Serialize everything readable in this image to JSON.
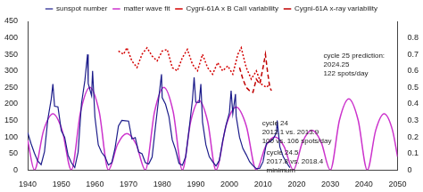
{
  "chart_data": {
    "type": "line",
    "xlim": [
      1940,
      2050
    ],
    "xticks": [
      1940,
      1950,
      1960,
      1970,
      1980,
      1990,
      2000,
      2010,
      2020,
      2030,
      2040,
      2050
    ],
    "ylim": [
      0,
      450
    ],
    "yticks": [
      0,
      50,
      100,
      150,
      200,
      250,
      300,
      350,
      400,
      450
    ],
    "y2lim": [
      0,
      0.9
    ],
    "y2ticks": [
      0,
      0.1,
      0.2,
      0.3,
      0.4,
      0.5,
      0.6,
      0.7,
      0.8
    ],
    "grid": false,
    "legend": "top",
    "series": [
      {
        "name": "sunspot number",
        "color": "#1c1c8a",
        "line_style": "solid",
        "x": [
          1940,
          1941,
          1942,
          1943,
          1944,
          1945,
          1946,
          1947,
          1947.5,
          1948,
          1949,
          1950,
          1951,
          1952,
          1953,
          1954,
          1955,
          1956,
          1957,
          1957.8,
          1958,
          1959,
          1959.3,
          1960,
          1961,
          1962,
          1963,
          1964,
          1965,
          1966,
          1967,
          1968,
          1969,
          1970,
          1971,
          1972,
          1973,
          1974,
          1975,
          1976,
          1977,
          1978,
          1979,
          1979.8,
          1980,
          1981,
          1982,
          1983,
          1984,
          1985,
          1986,
          1987,
          1988,
          1989,
          1989.5,
          1990,
          1991,
          1991.5,
          1992,
          1993,
          1994,
          1995,
          1996,
          1997,
          1998,
          1999,
          2000,
          2000.5,
          2001,
          2001.8,
          2002,
          2003,
          2004,
          2005,
          2006,
          2007,
          2008,
          2009,
          2010,
          2011,
          2012,
          2013,
          2014,
          2014.2,
          2015,
          2016,
          2017,
          2018
        ],
        "values": [
          113,
          80,
          51,
          27,
          16,
          55,
          154,
          214,
          260,
          193,
          191,
          119,
          99,
          45,
          22,
          7,
          54,
          201,
          270,
          350,
          262,
          225,
          300,
          160,
          76,
          53,
          40,
          15,
          22,
          67,
          133,
          150,
          149,
          148,
          94,
          98,
          54,
          49,
          22,
          18,
          39,
          131,
          220,
          290,
          219,
          199,
          162,
          91,
          61,
          20,
          14,
          40,
          123,
          212,
          280,
          205,
          204,
          260,
          145,
          76,
          40,
          25,
          12,
          29,
          88,
          136,
          174,
          240,
          170,
          230,
          163,
          99,
          65,
          46,
          25,
          13,
          4,
          5,
          25,
          81,
          85,
          94,
          113,
          150,
          70,
          40,
          22,
          7
        ]
      },
      {
        "name": "matter wave fit",
        "color": "#cc33cc",
        "line_style": "solid",
        "x": [
          1940,
          1942,
          1944.75,
          1947.5,
          1950.25,
          1953,
          1955.75,
          1958.5,
          1961.25,
          1964,
          1966.75,
          1969.5,
          1972.25,
          1975,
          1977.75,
          1980.5,
          1983.25,
          1986,
          1988.5,
          1991,
          1993.5,
          1996,
          1999,
          2002,
          2005,
          2008,
          2010.75,
          2013.5,
          2016.25,
          2019,
          2021.75,
          2024.5,
          2027.25,
          2030,
          2032.75,
          2035.5,
          2038.25,
          2041,
          2043.5,
          2046,
          2048.5,
          2050
        ],
        "values": [
          90,
          0,
          120,
          170,
          120,
          0,
          177,
          250,
          177,
          0,
          78,
          110,
          78,
          0,
          177,
          250,
          177,
          0,
          148,
          210,
          148,
          0,
          134,
          190,
          134,
          0,
          71,
          100,
          71,
          0,
          85,
          120,
          85,
          0,
          152,
          215,
          152,
          0,
          120,
          170,
          120,
          40
        ]
      },
      {
        "name": "Cygni-61A x B CaII variability",
        "color": "#d40000",
        "line_style": "dotted",
        "axis": "y2",
        "x": [
          1967,
          1968.5,
          1969.5,
          1971,
          1972.5,
          1974,
          1975.5,
          1977,
          1978.5,
          1980,
          1981.5,
          1983,
          1984.5,
          1986,
          1987.5,
          1989,
          1990.5,
          1992,
          1993.5,
          1995,
          1996.5,
          1998,
          1999.5,
          2001,
          2002.5,
          2003.5,
          2005,
          2006.5,
          2008,
          2009.5,
          2011,
          2012
        ],
        "values": [
          0.72,
          0.7,
          0.74,
          0.66,
          0.62,
          0.7,
          0.74,
          0.69,
          0.66,
          0.72,
          0.73,
          0.62,
          0.6,
          0.68,
          0.73,
          0.64,
          0.6,
          0.7,
          0.62,
          0.58,
          0.65,
          0.6,
          0.63,
          0.58,
          0.7,
          0.74,
          0.62,
          0.55,
          0.6,
          0.52,
          0.5,
          0.52
        ]
      },
      {
        "name": "Cygni-61A x-ray variability",
        "color": "#c00000",
        "line_style": "dashed",
        "axis": "y2",
        "x": [
          2003,
          2004,
          2005,
          2006,
          2007,
          2008,
          2009,
          2010,
          2010.7,
          2011.3,
          2012,
          2012.5
        ],
        "values": [
          0.62,
          0.55,
          0.5,
          0.48,
          0.47,
          0.55,
          0.52,
          0.62,
          0.7,
          0.6,
          0.5,
          0.48
        ]
      }
    ],
    "annotations": [
      {
        "text": [
          "cycle 25 prediction:",
          "2024.25",
          "122 spots/day"
        ],
        "x": 2028,
        "y": 345
      },
      {
        "text": [
          "cycle 24",
          "2012.1 vs. 2013.9",
          "100 vs. 106 spots/day"
        ],
        "x": 2009.7,
        "y": 140
      },
      {
        "text": [
          "cycle 24.5",
          "2017.8 vs. 2018.4",
          "minimum"
        ],
        "x": 2011,
        "y": 53
      }
    ]
  }
}
